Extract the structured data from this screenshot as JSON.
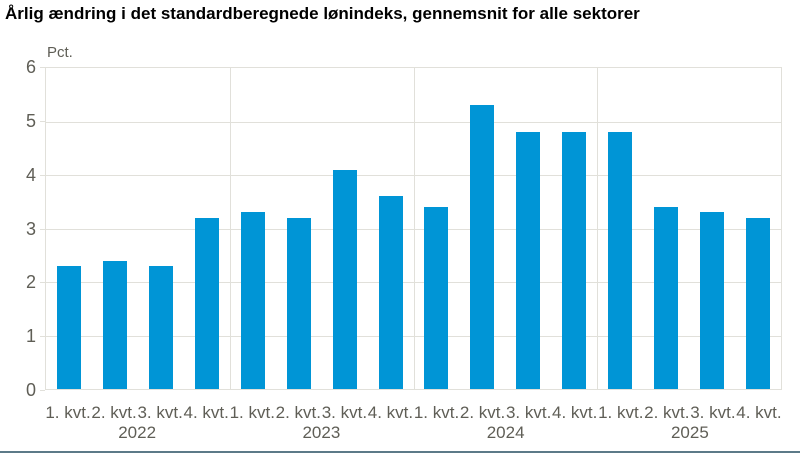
{
  "header": {
    "title": "Årlig ændring i det standardberegnede lønindeks, gennemsnit for alle sektorer"
  },
  "chart": {
    "unit_label": "Pct.",
    "colors": {
      "bar": "#0095d6",
      "grid": "#e1e0da",
      "axis_text": "#5f5e56",
      "title": "#000000",
      "bottom_rule": "#5c7a88",
      "background": "#ffffff"
    }
  },
  "chart_data": {
    "type": "bar",
    "title": "Årlig ændring i det standardberegnede lønindeks, gennemsnit for alle sektorer",
    "xlabel": "",
    "ylabel": "Pct.",
    "ylim": [
      0,
      6
    ],
    "yticks": [
      0,
      1,
      2,
      3,
      4,
      5,
      6
    ],
    "grid": true,
    "legend_position": "none",
    "quarter_labels": [
      "1. kvt.",
      "2. kvt.",
      "3. kvt.",
      "4. kvt."
    ],
    "groups": [
      {
        "year": "2022",
        "values": [
          2.3,
          2.4,
          2.3,
          3.2
        ]
      },
      {
        "year": "2023",
        "values": [
          3.3,
          3.2,
          4.1,
          3.6
        ]
      },
      {
        "year": "2024",
        "values": [
          3.4,
          5.3,
          4.8,
          4.8
        ]
      },
      {
        "year": "2025",
        "values": [
          4.8,
          3.4,
          3.3,
          3.2
        ]
      }
    ]
  }
}
